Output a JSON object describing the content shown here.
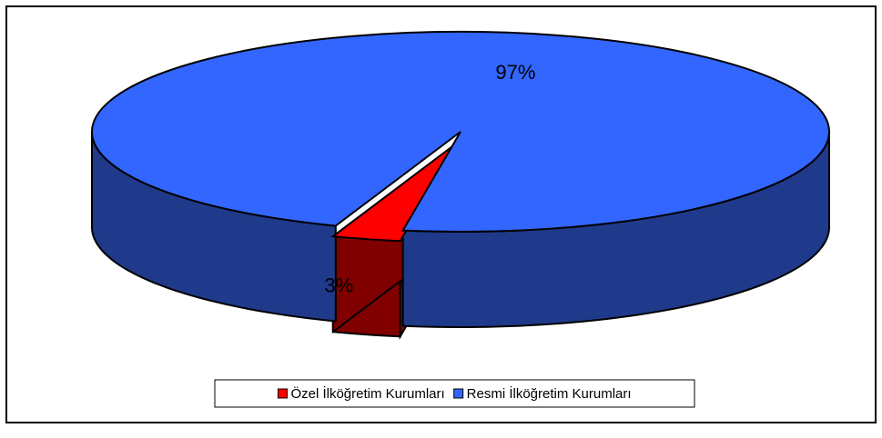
{
  "chart_data": {
    "type": "pie3d",
    "categories": [
      "Özel İlköğretim Kurumları",
      "Resmi İlköğretim Kurumları"
    ],
    "values": [
      3,
      97
    ],
    "value_labels": [
      "3%",
      "97%"
    ],
    "colors": [
      "#ff0000",
      "#3366ff"
    ],
    "side_colors": [
      "#800000",
      "#1f3a8a"
    ],
    "legend": "bottom"
  }
}
